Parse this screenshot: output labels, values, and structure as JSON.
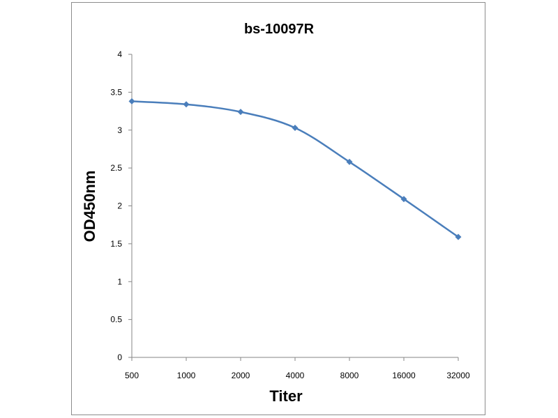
{
  "chart_data": {
    "type": "line",
    "title": "bs-10097R",
    "xlabel": "Titer",
    "ylabel": "OD450nm",
    "categories": [
      "500",
      "1000",
      "2000",
      "4000",
      "8000",
      "16000",
      "32000"
    ],
    "series": [
      {
        "values": [
          3.38,
          3.34,
          3.24,
          3.03,
          2.58,
          2.09,
          1.59
        ]
      }
    ],
    "ylim": [
      0,
      4
    ],
    "yticks": [
      "0",
      "0.5",
      "1",
      "1.5",
      "2",
      "2.5",
      "3",
      "3.5",
      "4"
    ],
    "ytick_values": [
      0,
      0.5,
      1,
      1.5,
      2,
      2.5,
      3,
      3.5,
      4
    ],
    "grid": false,
    "legend": "none",
    "line_color": "#4a7ebb"
  }
}
